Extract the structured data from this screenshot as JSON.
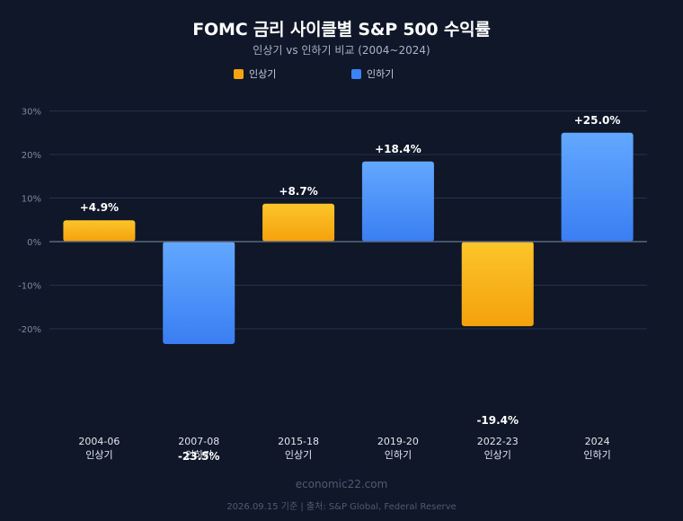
{
  "header": {
    "title": "FOMC 금리 사이클별 S&P 500 수익률",
    "subtitle": "인상기 vs 인하기 비교 (2004~2024)"
  },
  "legend": [
    {
      "label": "인상기",
      "color": "#f5a40f"
    },
    {
      "label": "인하기",
      "color": "#3b82f6"
    }
  ],
  "colors": {
    "hike_top": "#fcc52a",
    "hike_bottom": "#f5a10c",
    "cut_top": "#62a8ff",
    "cut_bottom": "#3a7ef2",
    "grid": "#26324a",
    "zero_line": "#5a6680",
    "tick": "#7e8aa0"
  },
  "chart_data": {
    "type": "bar",
    "categories": [
      "2004-06",
      "2007-08",
      "2015-18",
      "2019-20",
      "2022-23",
      "2024"
    ],
    "phases": [
      "인상기",
      "인하기",
      "인상기",
      "인하기",
      "인상기",
      "인하기"
    ],
    "values": [
      4.9,
      -23.5,
      8.7,
      18.4,
      -19.4,
      25.0
    ],
    "value_labels": [
      "+4.9%",
      "-23.5%",
      "+8.7%",
      "+18.4%",
      "-19.4%",
      "+25.0%"
    ],
    "yticks": [
      30,
      20,
      10,
      0,
      -10,
      -20
    ],
    "ytick_labels": [
      "30%",
      "20%",
      "10%",
      "0%",
      "-10%",
      "-20%"
    ],
    "ylim": [
      -25,
      30
    ],
    "legend_position": "top",
    "grid": true
  },
  "footer": {
    "brand": "economic22.com",
    "source": "2026.09.15 기준 | 출처: S&P Global, Federal Reserve"
  }
}
